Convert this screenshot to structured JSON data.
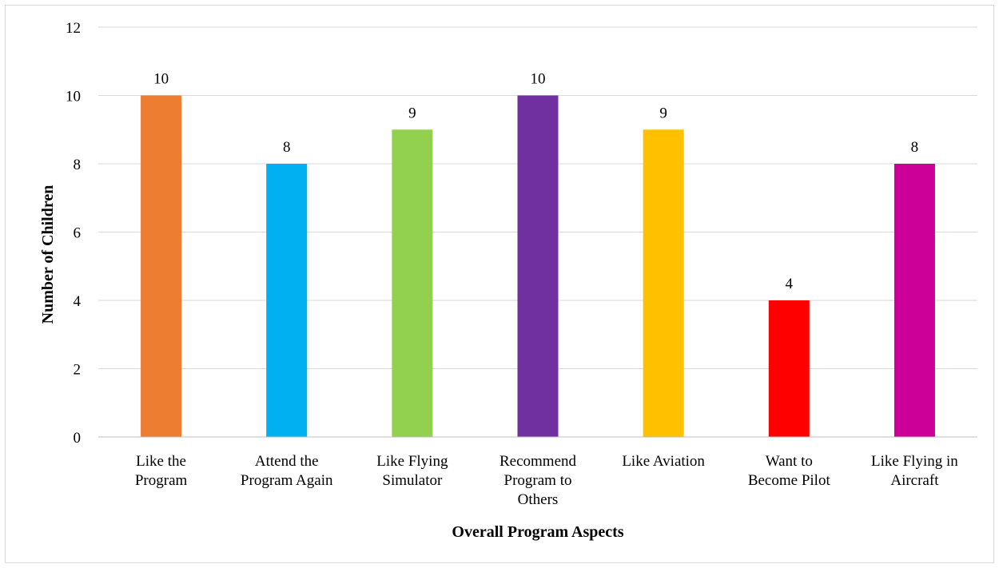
{
  "chart_data": {
    "type": "bar",
    "categories": [
      [
        "Like the",
        "Program"
      ],
      [
        "Attend the",
        "Program Again"
      ],
      [
        "Like Flying",
        "Simulator"
      ],
      [
        "Recommend",
        "Program to",
        "Others"
      ],
      [
        "Like Aviation"
      ],
      [
        "Want to",
        "Become Pilot"
      ],
      [
        "Like Flying in",
        "Aircraft"
      ]
    ],
    "values": [
      10,
      8,
      9,
      10,
      9,
      4,
      8
    ],
    "colors": [
      "#ED7D31",
      "#00B0F0",
      "#92D050",
      "#7030A0",
      "#FFC000",
      "#FF0000",
      "#CC0099"
    ],
    "xlabel": "Overall Program Aspects",
    "ylabel": "Number of Children",
    "ylim": [
      0,
      12
    ],
    "yticks": [
      0,
      2,
      4,
      6,
      8,
      10,
      12
    ],
    "data_labels": true,
    "grid": true,
    "legend": "none"
  }
}
